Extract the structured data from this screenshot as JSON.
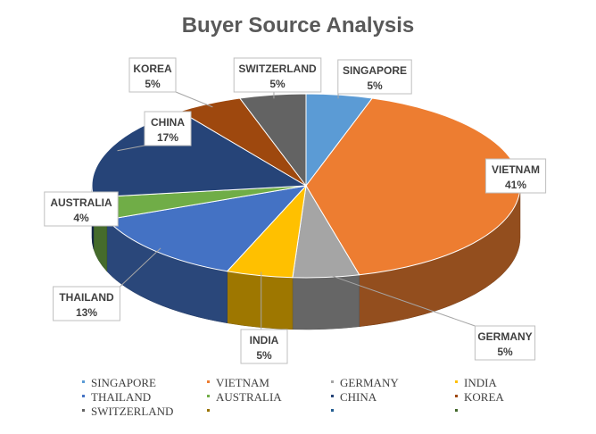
{
  "chart_data": {
    "type": "pie",
    "title": "Buyer Source Analysis",
    "categories": [
      "SINGAPORE",
      "VIETNAM",
      "GERMANY",
      "INDIA",
      "THAILAND",
      "AUSTRALIA",
      "CHINA",
      "KOREA",
      "SWITZERLAND"
    ],
    "values": [
      5,
      41,
      5,
      5,
      13,
      4,
      17,
      5,
      5
    ],
    "value_labels": [
      "5%",
      "41%",
      "5%",
      "5%",
      "13%",
      "4%",
      "17%",
      "5%",
      "5%"
    ],
    "colors": [
      "#5b9bd5",
      "#ed7d31",
      "#a5a5a5",
      "#ffc000",
      "#4472c4",
      "#70ad47",
      "#264478",
      "#9e480e",
      "#636363"
    ],
    "legend_extra_colors": [
      "#997300",
      "#255e91",
      "#43682b"
    ],
    "legend_position": "bottom",
    "three_d": true
  }
}
